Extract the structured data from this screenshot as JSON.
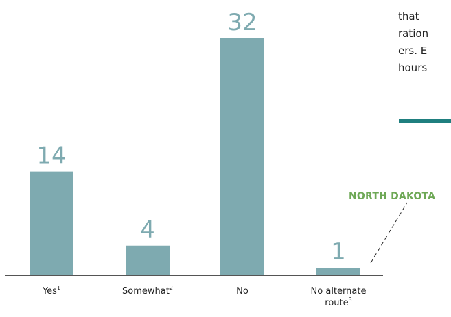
{
  "chart_data": {
    "type": "bar",
    "categories": [
      "Yes",
      "Somewhat",
      "No",
      "No alternate route"
    ],
    "category_footnotes": [
      "1",
      "2",
      "",
      "3"
    ],
    "values": [
      14,
      4,
      32,
      1
    ],
    "ylim": [
      0,
      32
    ],
    "grid": false,
    "title": "",
    "xlabel": "",
    "ylabel": "",
    "bar_color": "#7eaab0",
    "value_label_color": "#7eaab0",
    "axis_color": "#555555",
    "annotation": {
      "text": "NORTH DAKOTA",
      "target_category": "No alternate route",
      "color": "#6ea856"
    }
  },
  "side_text": {
    "lines": [
      "that",
      "ration",
      "ers. E",
      "hours"
    ],
    "rule_color": "#1f7f7f"
  }
}
